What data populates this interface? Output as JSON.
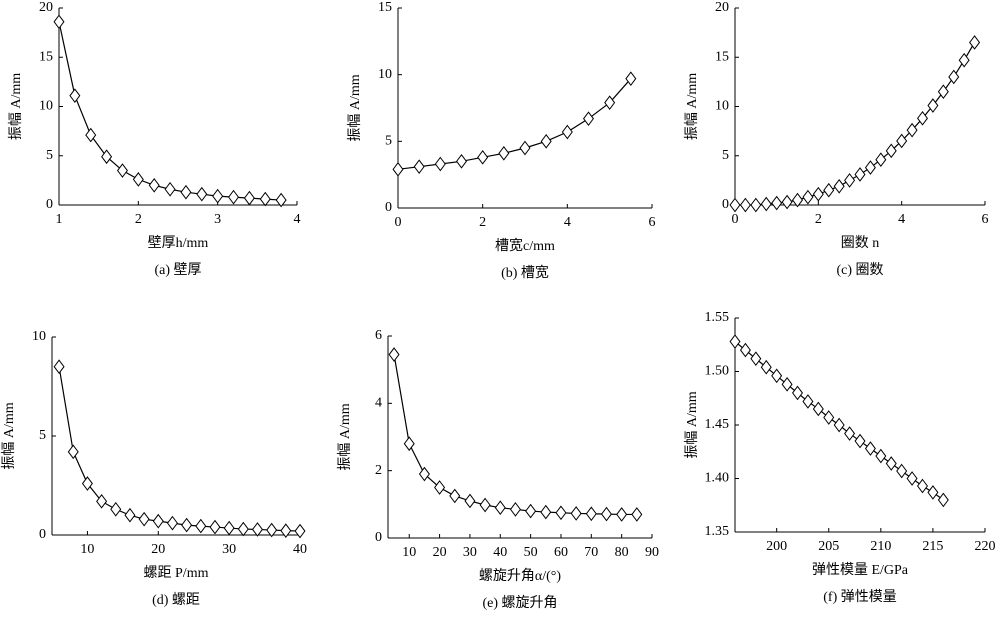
{
  "chart_data": [
    {
      "type": "line",
      "ylabel": "振幅 A/mm",
      "xlabel": "壁厚h/mm",
      "caption": "(a) 壁厚",
      "x": [
        1,
        1.2,
        1.4,
        1.6,
        1.8,
        2,
        2.2,
        2.4,
        2.6,
        2.8,
        3,
        3.2,
        3.4,
        3.6,
        3.8
      ],
      "values": [
        18.6,
        11.1,
        7.1,
        4.9,
        3.5,
        2.6,
        2.0,
        1.6,
        1.3,
        1.1,
        0.9,
        0.8,
        0.7,
        0.6,
        0.5
      ],
      "xlim": [
        1,
        4
      ],
      "xticks": [
        1,
        2,
        3,
        4
      ],
      "ylim": [
        0,
        20
      ],
      "yticks": [
        0,
        5,
        10,
        15,
        20
      ],
      "color": "#000000"
    },
    {
      "type": "line",
      "ylabel": "振幅 A/mm",
      "xlabel": "槽宽c/mm",
      "caption": "(b) 槽宽",
      "x": [
        0,
        0.5,
        1,
        1.5,
        2,
        2.5,
        3,
        3.5,
        4,
        4.5,
        5,
        5.5
      ],
      "values": [
        2.9,
        3.1,
        3.3,
        3.5,
        3.8,
        4.1,
        4.5,
        5.0,
        5.7,
        6.7,
        7.9,
        9.7
      ],
      "xlim": [
        0,
        6
      ],
      "xticks": [
        0,
        2,
        4,
        6
      ],
      "ylim": [
        0,
        15
      ],
      "yticks": [
        0,
        5,
        10,
        15
      ],
      "color": "#000000"
    },
    {
      "type": "line",
      "ylabel": "振幅 A/mm",
      "xlabel": "圈数 n",
      "caption": "(c) 圈数",
      "x": [
        0,
        0.25,
        0.5,
        0.75,
        1,
        1.25,
        1.5,
        1.75,
        2,
        2.25,
        2.5,
        2.75,
        3,
        3.25,
        3.5,
        3.75,
        4,
        4.25,
        4.5,
        4.75,
        5,
        5.25,
        5.5,
        5.75
      ],
      "values": [
        0,
        0,
        0,
        0.1,
        0.2,
        0.3,
        0.5,
        0.8,
        1.1,
        1.5,
        1.9,
        2.5,
        3.1,
        3.8,
        4.6,
        5.5,
        6.5,
        7.6,
        8.8,
        10.1,
        11.5,
        13.0,
        14.7,
        16.5
      ],
      "xlim": [
        0,
        6
      ],
      "xticks": [
        0,
        2,
        4,
        6
      ],
      "ylim": [
        0,
        20
      ],
      "yticks": [
        0,
        5,
        10,
        15,
        20
      ],
      "color": "#000000"
    },
    {
      "type": "line",
      "ylabel": "振幅 A/mm",
      "xlabel": "螺距 P/mm",
      "caption": "(d) 螺距",
      "x": [
        6,
        8,
        10,
        12,
        14,
        16,
        18,
        20,
        22,
        24,
        26,
        28,
        30,
        32,
        34,
        36,
        38,
        40
      ],
      "values": [
        8.5,
        4.2,
        2.6,
        1.7,
        1.3,
        1.0,
        0.8,
        0.7,
        0.6,
        0.5,
        0.45,
        0.4,
        0.35,
        0.3,
        0.28,
        0.25,
        0.22,
        0.2
      ],
      "xlim": [
        5,
        40
      ],
      "xticks": [
        10,
        20,
        30,
        40
      ],
      "ylim": [
        0,
        10
      ],
      "yticks": [
        0,
        5,
        10
      ],
      "color": "#000000"
    },
    {
      "type": "line",
      "ylabel": "振幅 A/mm",
      "xlabel": "螺旋升角α/(°)",
      "caption": "(e) 螺旋升角",
      "x": [
        5,
        10,
        15,
        20,
        25,
        30,
        35,
        40,
        45,
        50,
        55,
        60,
        65,
        70,
        75,
        80,
        85
      ],
      "values": [
        5.45,
        2.8,
        1.9,
        1.5,
        1.25,
        1.1,
        0.98,
        0.9,
        0.85,
        0.8,
        0.77,
        0.75,
        0.73,
        0.72,
        0.71,
        0.7,
        0.7
      ],
      "xlim": [
        3,
        90
      ],
      "xticks": [
        10,
        20,
        30,
        40,
        50,
        60,
        70,
        80,
        90
      ],
      "ylim": [
        0,
        6
      ],
      "yticks": [
        0,
        2,
        4,
        6
      ],
      "color": "#000000"
    },
    {
      "type": "line",
      "ylabel": "振幅 A/mm",
      "xlabel": "弹性模量 E/GPa",
      "caption": "(f) 弹性模量",
      "x": [
        196,
        197,
        198,
        199,
        200,
        201,
        202,
        203,
        204,
        205,
        206,
        207,
        208,
        209,
        210,
        211,
        212,
        213,
        214,
        215,
        216
      ],
      "values": [
        1.528,
        1.52,
        1.512,
        1.504,
        1.496,
        1.488,
        1.48,
        1.472,
        1.465,
        1.457,
        1.45,
        1.442,
        1.435,
        1.428,
        1.421,
        1.414,
        1.407,
        1.4,
        1.393,
        1.387,
        1.38
      ],
      "xlim": [
        196,
        220
      ],
      "xticks": [
        200,
        205,
        210,
        215,
        220
      ],
      "ylim": [
        1.35,
        1.55
      ],
      "yticks": [
        1.35,
        {
          "value": 1.4,
          "label": "1.40"
        },
        1.45,
        {
          "value": 1.5,
          "label": "1.50"
        },
        1.55
      ],
      "color": "#000000"
    }
  ]
}
